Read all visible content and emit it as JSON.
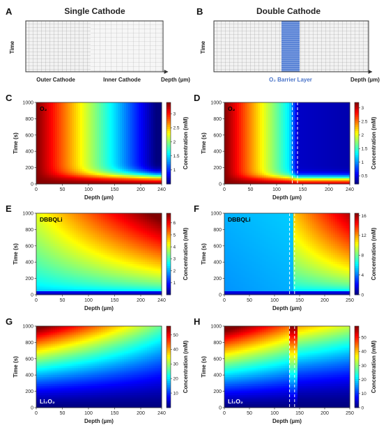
{
  "figure": {
    "top": {
      "A": {
        "label": "A",
        "title": "Single Cathode",
        "ylabel": "Time",
        "xlabel": "Depth (µm)",
        "region_labels": [
          "Outer Cathode",
          "Inner Cathode"
        ]
      },
      "B": {
        "label": "B",
        "title": "Double Cathode",
        "ylabel": "Time",
        "xlabel": "Depth (µm)",
        "barrier_label": "O₂ Barrier Layer"
      }
    },
    "colors": {
      "barrier": "#4a74c9",
      "dashed_lines": "#ffffff"
    },
    "colormap": "jet"
  },
  "chart_data": [
    {
      "panel": "C",
      "type": "heatmap",
      "species": "O₂",
      "xlabel": "Depth (µm)",
      "ylabel": "Time (s)",
      "colorbar_label": "Concentration (mM)",
      "xlim": [
        0,
        240
      ],
      "ylim": [
        0,
        1000
      ],
      "xticks": [
        "0",
        "50",
        "100",
        "150",
        "200",
        "240"
      ],
      "yticks": [
        "0",
        "200",
        "400",
        "600",
        "800",
        "1000"
      ],
      "cbar_range": [
        0.5,
        3.4
      ],
      "cbar_ticks": [
        "1",
        "1.5",
        "2",
        "2.5",
        "3"
      ],
      "model": "o2_single",
      "dashed_lines_x": []
    },
    {
      "panel": "D",
      "type": "heatmap",
      "species": "O₂",
      "xlabel": "Depth (µm)",
      "ylabel": "Time (s)",
      "colorbar_label": "Concentration (mM)",
      "xlim": [
        0,
        240
      ],
      "ylim": [
        0,
        1000
      ],
      "xticks": [
        "0",
        "50",
        "100",
        "150",
        "200",
        "240"
      ],
      "yticks": [
        "0",
        "200",
        "400",
        "600",
        "800",
        "1000"
      ],
      "cbar_range": [
        0.2,
        3.2
      ],
      "cbar_ticks": [
        "0.5",
        "1",
        "1.5",
        "2",
        "2.5",
        "3"
      ],
      "model": "o2_double",
      "dashed_lines_x": [
        130,
        140
      ]
    },
    {
      "panel": "E",
      "type": "heatmap",
      "species": "DBBQLi",
      "xlabel": "Depth (µm)",
      "ylabel": "Time (s)",
      "colorbar_label": "Concentration (mM)",
      "xlim": [
        0,
        240
      ],
      "ylim": [
        0,
        1000
      ],
      "xticks": [
        "0",
        "50",
        "100",
        "150",
        "200",
        "240"
      ],
      "yticks": [
        "0",
        "200",
        "400",
        "600",
        "800",
        "1000"
      ],
      "cbar_range": [
        0,
        6.8
      ],
      "cbar_ticks": [
        "1",
        "2",
        "3",
        "4",
        "5",
        "6"
      ],
      "model": "dbbq_single",
      "dashed_lines_x": []
    },
    {
      "panel": "F",
      "type": "heatmap",
      "species": "DBBQLi",
      "xlabel": "Depth (µm)",
      "ylabel": "Time (s)",
      "colorbar_label": "Concentration (mM)",
      "xlim": [
        0,
        250
      ],
      "ylim": [
        0,
        1000
      ],
      "xticks": [
        "0",
        "50",
        "100",
        "150",
        "200",
        "250"
      ],
      "yticks": [
        "0",
        "200",
        "400",
        "600",
        "800",
        "1000"
      ],
      "cbar_range": [
        0,
        16.5
      ],
      "cbar_ticks": [
        "0",
        "4",
        "8",
        "12",
        "16"
      ],
      "model": "dbbq_double",
      "dashed_lines_x": [
        130,
        140
      ]
    },
    {
      "panel": "G",
      "type": "heatmap",
      "species": "Li₂O₂",
      "xlabel": "Depth (µm)",
      "ylabel": "Time (s)",
      "colorbar_label": "Concentration (mM)",
      "xlim": [
        0,
        240
      ],
      "ylim": [
        0,
        1000
      ],
      "xticks": [
        "0",
        "50",
        "100",
        "150",
        "200",
        "240"
      ],
      "yticks": [
        "0",
        "200",
        "400",
        "600",
        "800",
        "1000"
      ],
      "cbar_range": [
        0,
        56
      ],
      "cbar_ticks": [
        "10",
        "20",
        "30",
        "40",
        "50"
      ],
      "model": "li2o2_single",
      "dashed_lines_x": []
    },
    {
      "panel": "H",
      "type": "heatmap",
      "species": "Li₂O₂",
      "xlabel": "Depth (µm)",
      "ylabel": "Time (s)",
      "colorbar_label": "Concentration (mM)",
      "xlim": [
        0,
        250
      ],
      "ylim": [
        0,
        1000
      ],
      "xticks": [
        "0",
        "50",
        "100",
        "150",
        "200",
        "250"
      ],
      "yticks": [
        "0",
        "200",
        "400",
        "600",
        "800",
        "1000"
      ],
      "cbar_range": [
        0,
        58
      ],
      "cbar_ticks": [
        "0",
        "10",
        "20",
        "30",
        "40",
        "50"
      ],
      "model": "li2o2_double",
      "dashed_lines_x": [
        130,
        140
      ]
    }
  ]
}
